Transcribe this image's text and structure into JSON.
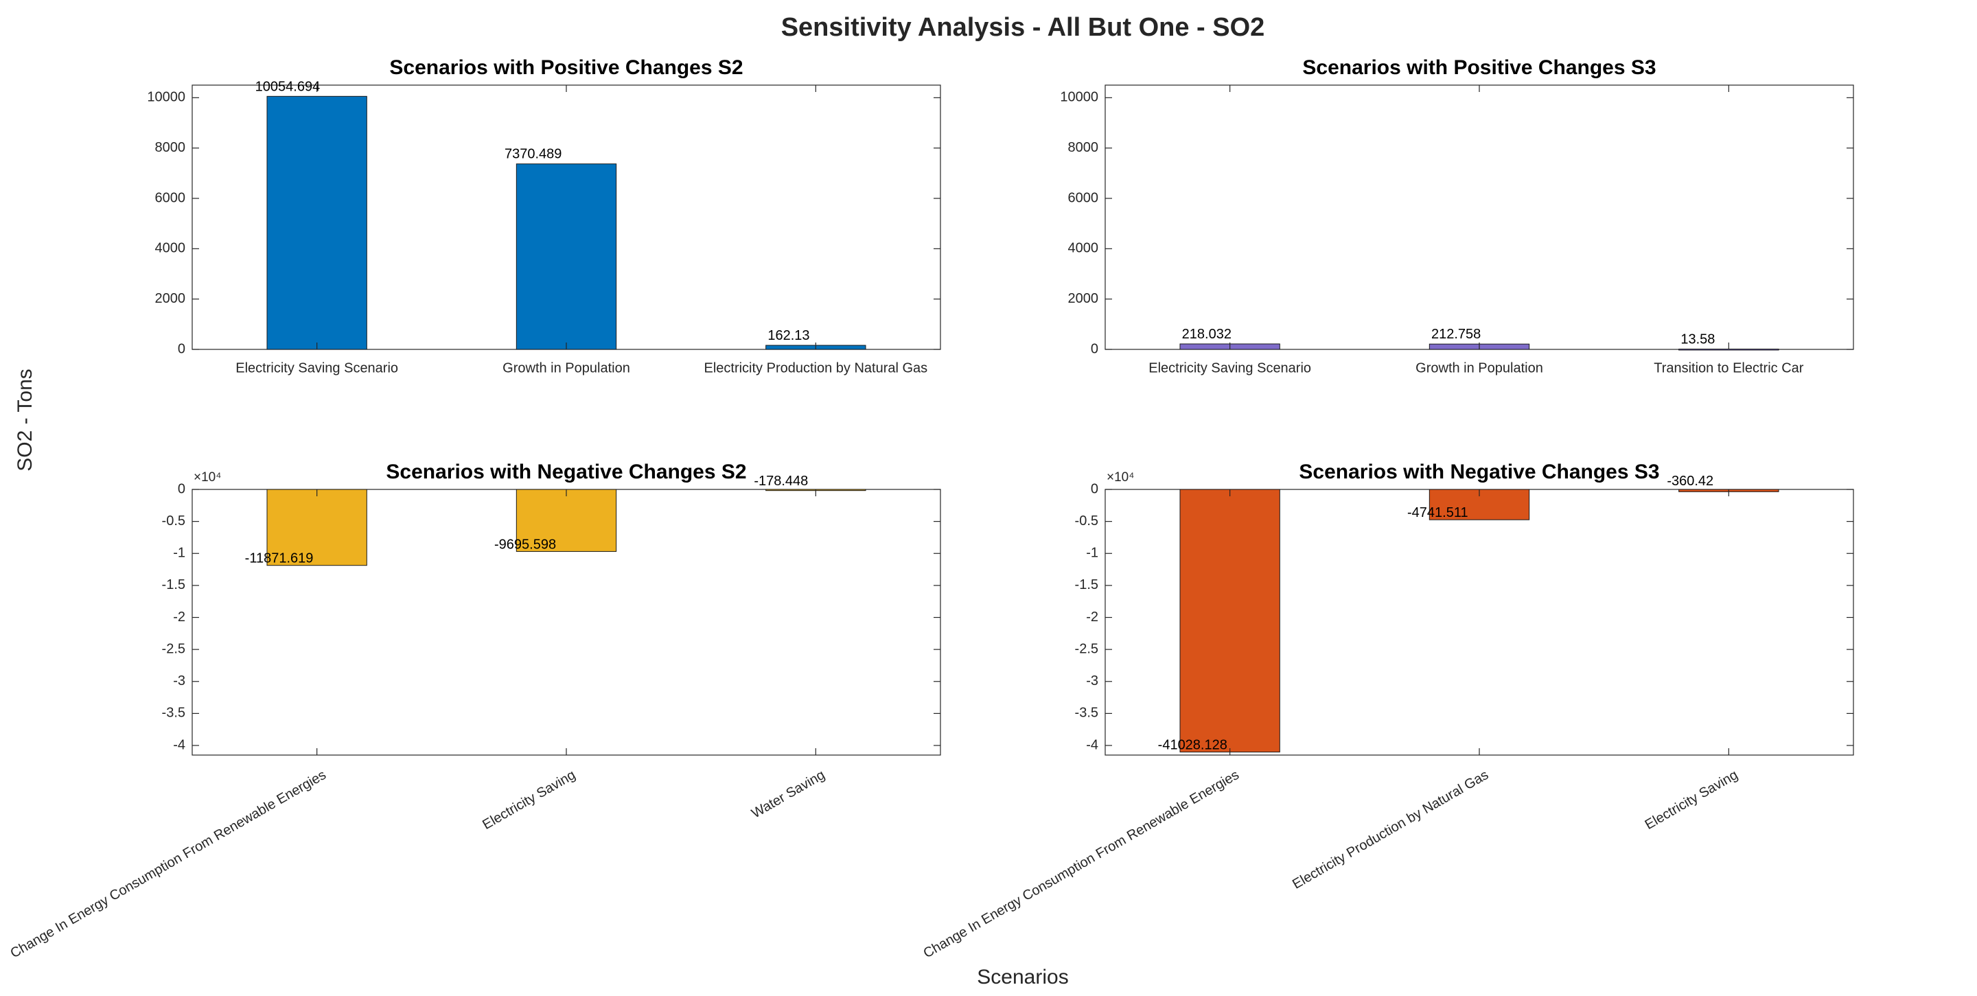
{
  "figure": {
    "suptitle": "Sensitivity Analysis - All But One - SO2",
    "ylabel": "SO2 - Tons",
    "xlabel": "Scenarios"
  },
  "chart_data": [
    {
      "type": "bar",
      "title": "Scenarios with Positive Changes S2",
      "categories": [
        "Electricity Saving Scenario",
        "Growth in Population",
        "Electricity Production by Natural Gas"
      ],
      "values": [
        10054.694,
        7370.489,
        162.13
      ],
      "data_labels": [
        "10054.694",
        "7370.489",
        "162.13"
      ],
      "ylim": [
        0,
        10500
      ],
      "yticks": [
        0,
        2000,
        4000,
        6000,
        8000,
        10000
      ],
      "ytick_labels": [
        "0",
        "2000",
        "4000",
        "6000",
        "8000",
        "10000"
      ],
      "exponent_label": "",
      "color": "#0072BD",
      "tick_rotation": 0,
      "grid": false
    },
    {
      "type": "bar",
      "title": "Scenarios with Positive Changes S3",
      "categories": [
        "Electricity Saving Scenario",
        "Growth in Population",
        "Transition to Electric Car"
      ],
      "values": [
        218.032,
        212.758,
        13.58
      ],
      "data_labels": [
        "218.032",
        "212.758",
        "13.58"
      ],
      "ylim": [
        0,
        10500
      ],
      "yticks": [
        0,
        2000,
        4000,
        6000,
        8000,
        10000
      ],
      "ytick_labels": [
        "0",
        "2000",
        "4000",
        "6000",
        "8000",
        "10000"
      ],
      "exponent_label": "",
      "color": "#7E6BC9",
      "tick_rotation": 0,
      "grid": false
    },
    {
      "type": "bar",
      "title": "Scenarios with Negative Changes S2",
      "categories": [
        "Change In Energy Consumption From Renewable Energies",
        "Electricity Saving",
        "Water Saving"
      ],
      "values": [
        -11871.619,
        -9695.598,
        -178.448
      ],
      "data_labels": [
        "-11871.619",
        "-9695.598",
        "-178.448"
      ],
      "ylim": [
        -41500,
        0
      ],
      "yticks": [
        0,
        -5000,
        -10000,
        -15000,
        -20000,
        -25000,
        -30000,
        -35000,
        -40000
      ],
      "ytick_labels": [
        "0",
        "-0.5",
        "-1",
        "-1.5",
        "-2",
        "-2.5",
        "-3",
        "-3.5",
        "-4"
      ],
      "exponent_label": "×10⁴",
      "color": "#EDB120",
      "tick_rotation": -30,
      "grid": false
    },
    {
      "type": "bar",
      "title": "Scenarios with Negative Changes S3",
      "categories": [
        "Change In Energy Consumption From Renewable Energies",
        "Electricity Production by Natural Gas",
        "Electricity Saving"
      ],
      "values": [
        -41028.128,
        -4741.511,
        -360.42
      ],
      "data_labels": [
        "-41028.128",
        "-4741.511",
        "-360.42"
      ],
      "ylim": [
        -41500,
        0
      ],
      "yticks": [
        0,
        -5000,
        -10000,
        -15000,
        -20000,
        -25000,
        -30000,
        -35000,
        -40000
      ],
      "ytick_labels": [
        "0",
        "-0.5",
        "-1",
        "-1.5",
        "-2",
        "-2.5",
        "-3",
        "-3.5",
        "-4"
      ],
      "exponent_label": "×10⁴",
      "color": "#D95319",
      "tick_rotation": -30,
      "grid": false
    }
  ]
}
